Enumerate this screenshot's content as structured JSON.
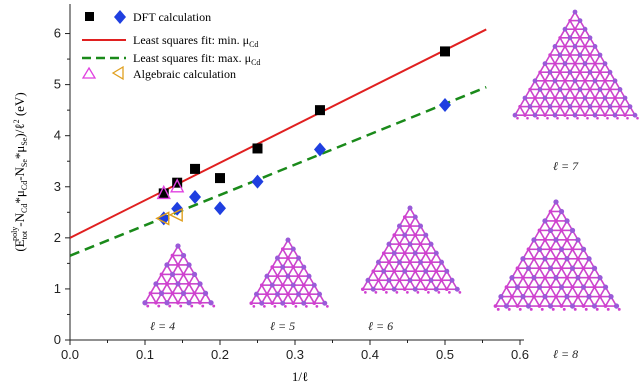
{
  "chart_data": {
    "type": "scatter",
    "xlabel": "1/ℓ",
    "ylabel": "(E_tot^poly - N_Cd*μ_Cd - N_Se*μ_Se)/ℓ² (eV)",
    "ylabel_parts": {
      "open": "(E",
      "sup": "poly",
      "sub": "tot",
      "mid1": "-N",
      "sub_cd": "Cd",
      "mu1": "*μ",
      "sub_cd2": "Cd",
      "mid2": "-N",
      "sub_se": "Se",
      "mu2": "*μ",
      "sub_se2": "Se",
      "close": ")/ℓ",
      "sq": "2",
      "unit": " (eV)"
    },
    "xlim": [
      0.0,
      0.6
    ],
    "ylim": [
      0,
      6.5
    ],
    "x_ticks": [
      "0.0",
      "0.1",
      "0.2",
      "0.3",
      "0.4",
      "0.5",
      "0.6"
    ],
    "y_ticks": [
      "0",
      "1",
      "2",
      "3",
      "4",
      "5",
      "6"
    ],
    "legend_position": "top-left",
    "series": [
      {
        "name": "DFT calculation",
        "subset": "min μ_Cd",
        "marker": "square",
        "color": "#000000",
        "x": [
          0.125,
          0.1429,
          0.1667,
          0.2,
          0.25,
          0.3333,
          0.5
        ],
        "y": [
          2.87,
          3.08,
          3.35,
          3.17,
          3.75,
          4.5,
          5.65
        ]
      },
      {
        "name": "DFT calculation",
        "subset": "max μ_Cd",
        "marker": "diamond",
        "color": "#1f3fe0",
        "x": [
          0.125,
          0.1429,
          0.1667,
          0.2,
          0.25,
          0.3333,
          0.5
        ],
        "y": [
          2.38,
          2.57,
          2.8,
          2.58,
          3.1,
          3.73,
          4.6
        ]
      },
      {
        "name": "Algebraic calculation",
        "subset": "min μ_Cd",
        "marker": "triangle-up",
        "color": "#e040e0",
        "x": [
          0.125,
          0.1429
        ],
        "y": [
          2.87,
          3.0
        ]
      },
      {
        "name": "Algebraic calculation",
        "subset": "max μ_Cd",
        "marker": "triangle-left",
        "color": "#e0a020",
        "x": [
          0.125,
          0.1429
        ],
        "y": [
          2.38,
          2.45
        ]
      }
    ],
    "fits": [
      {
        "name": "Least squares fit: min. μ_Cd",
        "label_main": "Least squares fit: min. μ",
        "label_sub": "Cd",
        "color": "#e02020",
        "dash": "solid",
        "x0": 0.0,
        "y0": 2.0,
        "x1": 0.555,
        "y1": 6.08
      },
      {
        "name": "Least squares fit: max. μ_Cd",
        "label_main": "Least squares fit: max. μ",
        "label_sub": "Cd",
        "color": "#1a8a1a",
        "dash": "dashed",
        "x0": 0.0,
        "y0": 1.65,
        "x1": 0.555,
        "y1": 4.95
      }
    ],
    "legend": [
      {
        "text": "DFT calculation"
      },
      {
        "text": "Least squares fit: min. μ_Cd"
      },
      {
        "text": "Least squares fit: max. μ_Cd"
      },
      {
        "text": "Algebraic calculation"
      }
    ],
    "structure_labels": [
      "ℓ = 4",
      "ℓ = 5",
      "ℓ = 6",
      "ℓ = 7",
      "ℓ = 8"
    ]
  },
  "colors": {
    "atom_cd": "#9a5ad8",
    "atom_se": "#d040d0",
    "bond": "#cc44cc"
  }
}
